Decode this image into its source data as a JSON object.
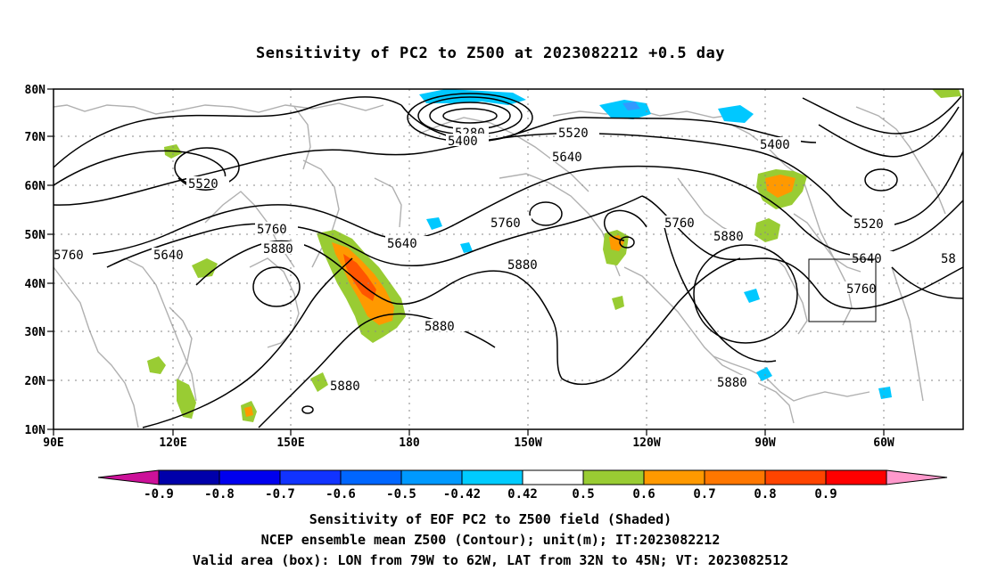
{
  "title": "Sensitivity of PC2 to Z500 at 2023082212 +0.5 day",
  "map": {
    "lon_labels": [
      "90E",
      "120E",
      "150E",
      "180",
      "150W",
      "120W",
      "90W",
      "60W"
    ],
    "lat_labels": [
      "80N",
      "70N",
      "60N",
      "50N",
      "40N",
      "30N",
      "20N",
      "10N"
    ],
    "contour_labels": [
      "5280",
      "5400",
      "5520",
      "5400",
      "5520",
      "5640",
      "5760",
      "5640",
      "5640",
      "5760",
      "5880",
      "5880",
      "5880",
      "5760",
      "5880",
      "5520",
      "5640",
      "5760",
      "5880",
      "5880",
      "58"
    ],
    "shade_colors": {
      "pos_mid": "#99cc33",
      "pos_high": "#ff9900",
      "pos_max": "#ff5500",
      "neg_low": "#00c8ff",
      "neg_mid": "#3399ff"
    }
  },
  "colorbar": {
    "labels": [
      "-0.9",
      "-0.8",
      "-0.7",
      "-0.6",
      "-0.5",
      "-0.42",
      "0.42",
      "0.5",
      "0.6",
      "0.7",
      "0.8",
      "0.9"
    ],
    "colors": [
      "#0000aa",
      "#0000ee",
      "#1133ff",
      "#0066ff",
      "#0099ff",
      "#00ccff",
      "#ffffff",
      "#99cc33",
      "#ff9900",
      "#ff7700",
      "#ff4400",
      "#ff0000"
    ],
    "under_color": "#cc1199",
    "over_color": "#ff99cc"
  },
  "captions": [
    "Sensitivity of EOF PC2 to Z500 field (Shaded)",
    "NCEP ensemble mean Z500 (Contour); unit(m); IT:2023082212",
    "Valid area (box): LON from 79W to 62W, LAT from 32N to 45N; VT: 2023082512"
  ]
}
